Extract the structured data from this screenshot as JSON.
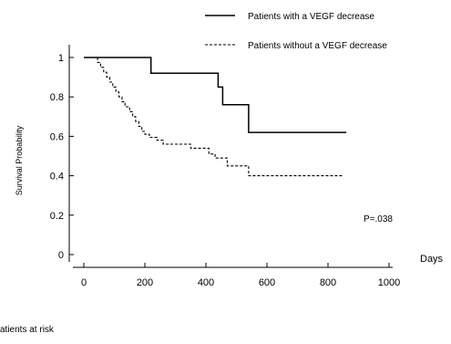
{
  "chart_data": {
    "type": "line",
    "title": "",
    "xlabel": "Days",
    "ylabel": "Survival Probability",
    "xlim": [
      0,
      1000
    ],
    "ylim": [
      0,
      1
    ],
    "x_ticks": [
      "0",
      "200",
      "400",
      "600",
      "800",
      "1000"
    ],
    "y_ticks": [
      "0",
      "0.2",
      "0.4",
      "0.6",
      "0.8",
      "1"
    ],
    "grid": false,
    "legend_position": "top-right",
    "annotation": "P=.038",
    "series": [
      {
        "name": "Patients with a VEGF decrease",
        "style": "solid",
        "x": [
          0,
          220,
          220,
          440,
          440,
          455,
          455,
          540,
          540,
          860
        ],
        "y": [
          1.0,
          1.0,
          0.92,
          0.92,
          0.85,
          0.85,
          0.76,
          0.76,
          0.62,
          0.62
        ]
      },
      {
        "name": "Patients without a VEGF decrease",
        "style": "dashed",
        "x": [
          0,
          45,
          45,
          55,
          55,
          65,
          65,
          75,
          75,
          85,
          85,
          95,
          95,
          105,
          105,
          115,
          115,
          125,
          125,
          135,
          135,
          150,
          150,
          160,
          160,
          170,
          170,
          180,
          180,
          190,
          190,
          200,
          200,
          215,
          215,
          240,
          240,
          260,
          260,
          350,
          350,
          410,
          410,
          430,
          430,
          470,
          470,
          540,
          540,
          850
        ],
        "y": [
          1.0,
          1.0,
          0.975,
          0.975,
          0.95,
          0.95,
          0.925,
          0.925,
          0.9,
          0.9,
          0.875,
          0.875,
          0.85,
          0.85,
          0.825,
          0.825,
          0.8,
          0.8,
          0.775,
          0.775,
          0.75,
          0.75,
          0.725,
          0.725,
          0.7,
          0.7,
          0.675,
          0.675,
          0.65,
          0.65,
          0.625,
          0.625,
          0.61,
          0.61,
          0.595,
          0.595,
          0.58,
          0.58,
          0.56,
          0.56,
          0.54,
          0.54,
          0.51,
          0.51,
          0.49,
          0.49,
          0.45,
          0.45,
          0.4,
          0.4
        ]
      }
    ]
  },
  "footer": {
    "at_risk_label": "atients at risk"
  }
}
